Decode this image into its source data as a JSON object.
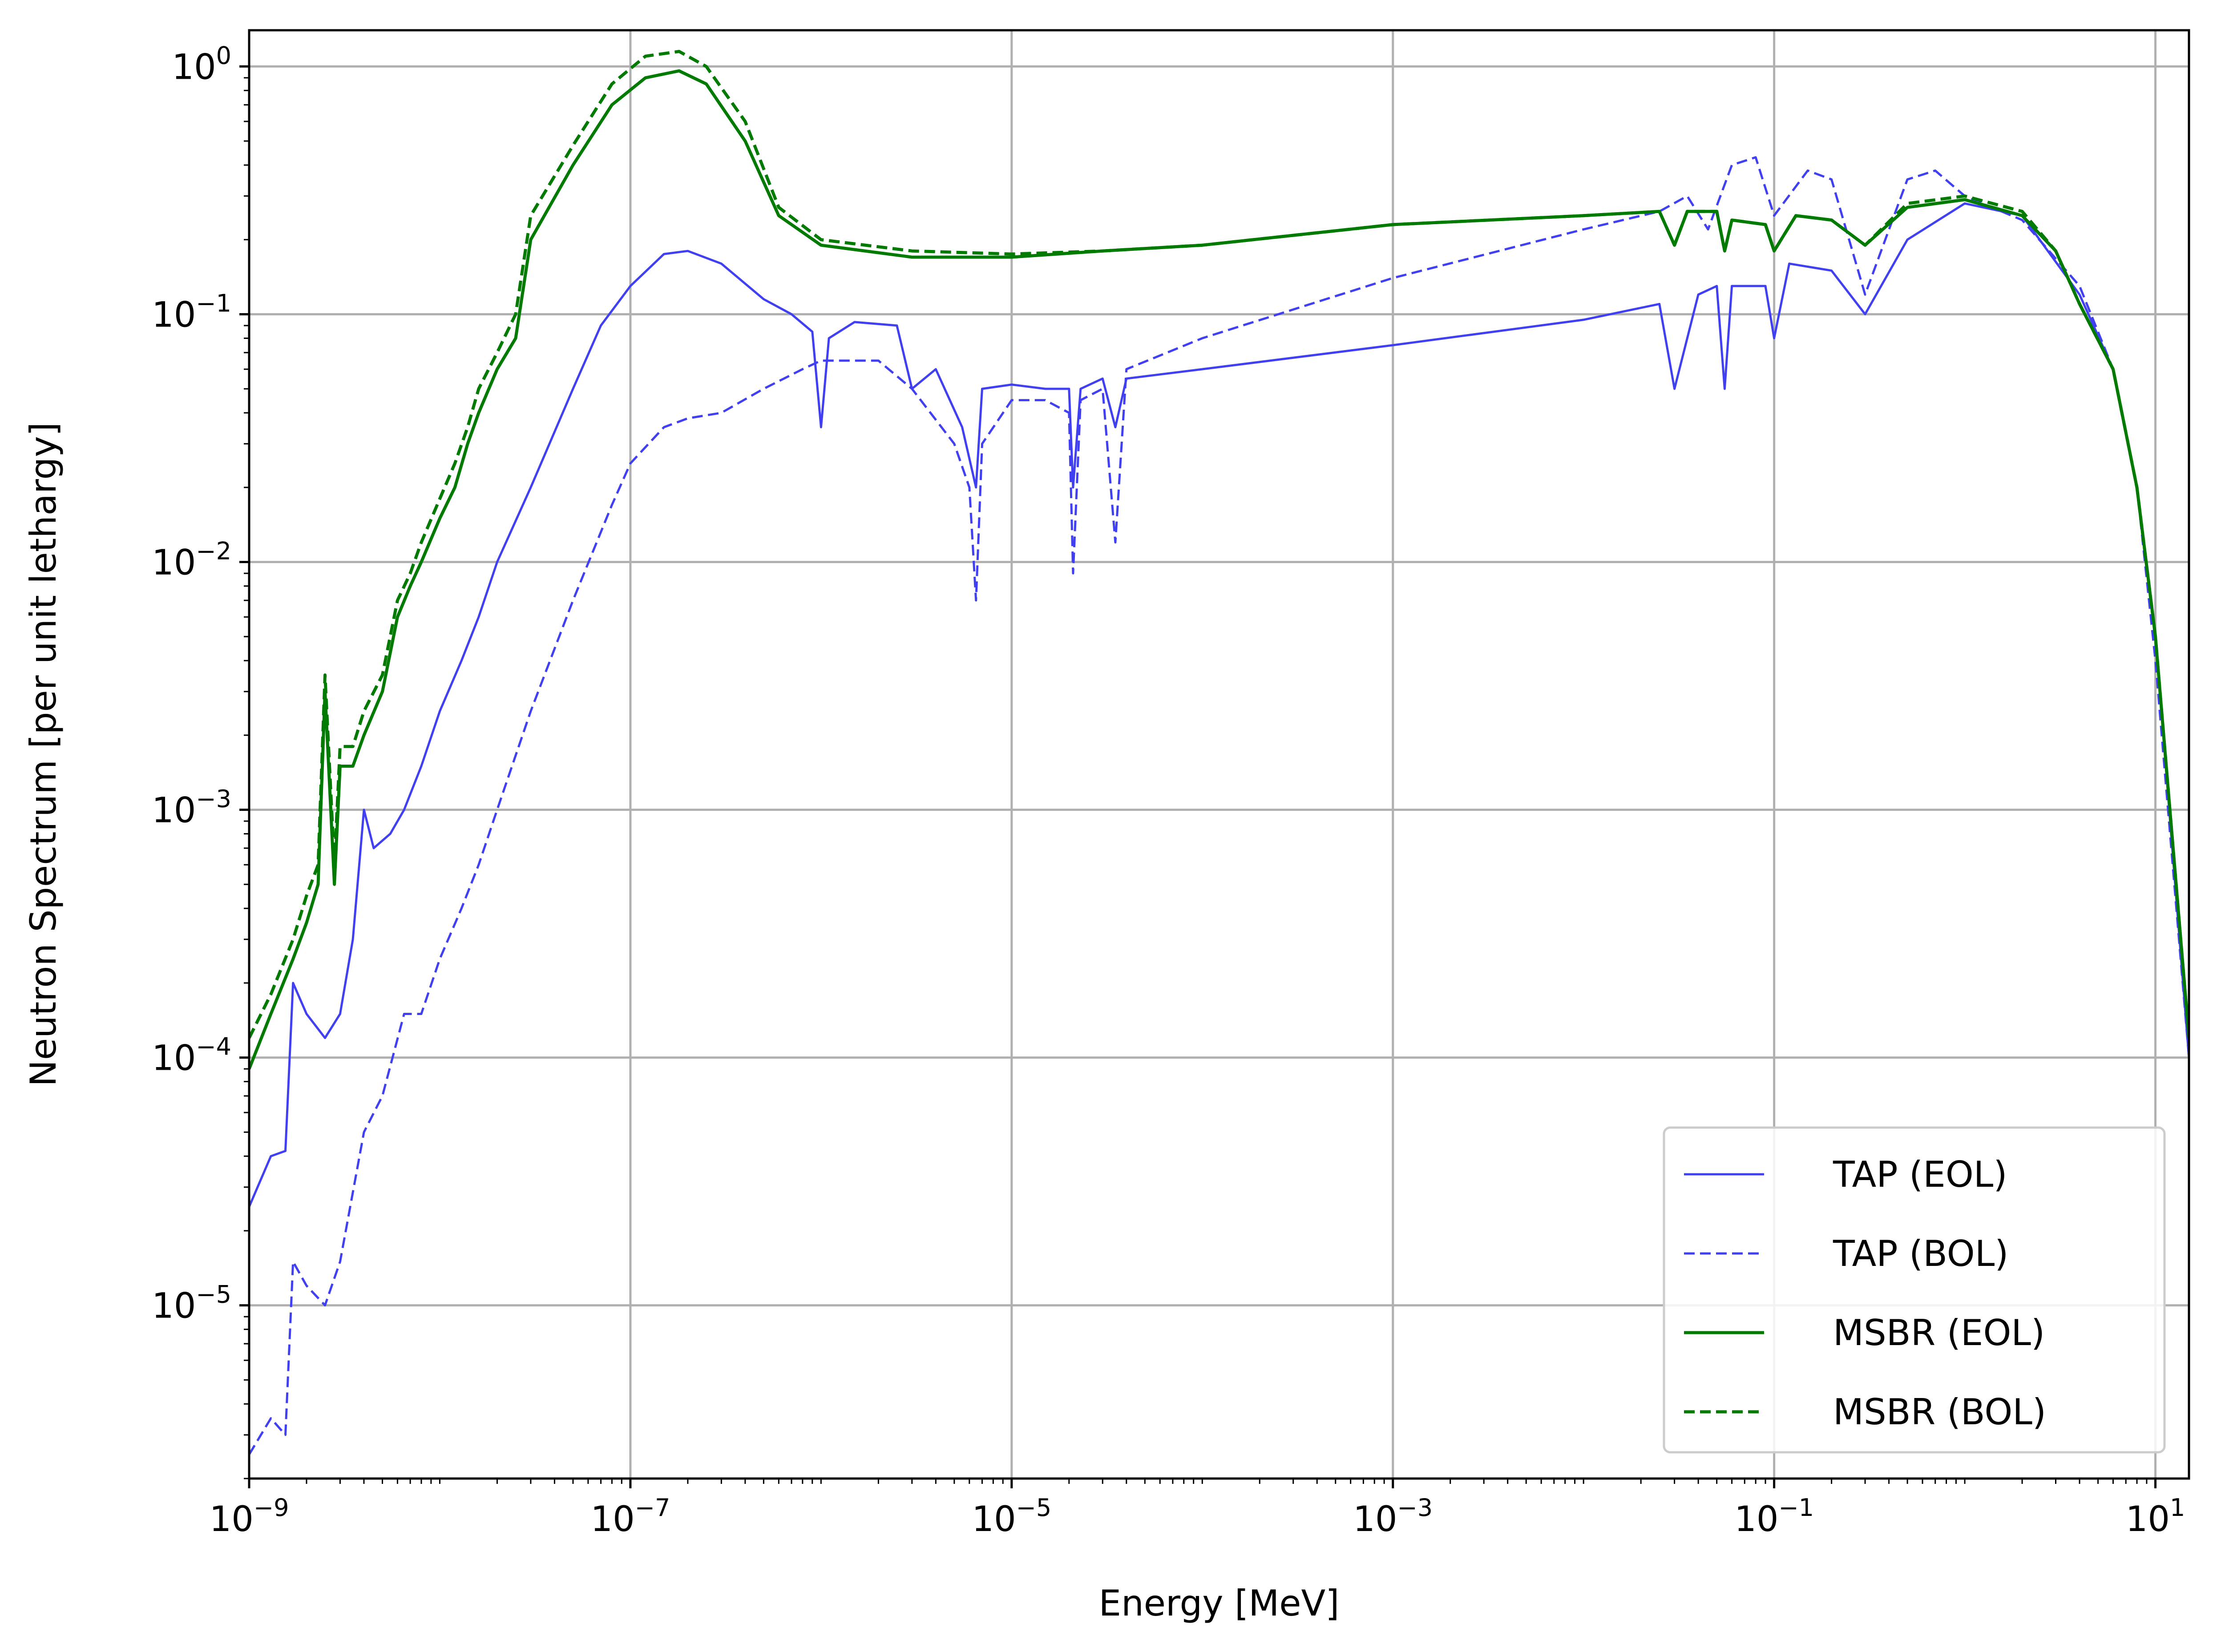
{
  "chart_data": {
    "type": "line",
    "xlabel": "Energy [MeV]",
    "ylabel": "Neutron Spectrum [per unit lethargy]",
    "xscale": "log",
    "yscale": "log",
    "xlim": [
      1e-09,
      15
    ],
    "ylim": [
      2e-06,
      1.4
    ],
    "grid": true,
    "legend_position": "bottom-right",
    "x_ticks": [
      {
        "value": 1e-09,
        "base": "10",
        "exp": "−9"
      },
      {
        "value": 1e-07,
        "base": "10",
        "exp": "−7"
      },
      {
        "value": 1e-05,
        "base": "10",
        "exp": "−5"
      },
      {
        "value": 0.001,
        "base": "10",
        "exp": "−3"
      },
      {
        "value": 0.1,
        "base": "10",
        "exp": "−1"
      },
      {
        "value": 10,
        "base": "10",
        "exp": "1"
      }
    ],
    "y_ticks": [
      {
        "value": 1,
        "base": "10",
        "exp": "0"
      },
      {
        "value": 0.1,
        "base": "10",
        "exp": "−1"
      },
      {
        "value": 0.01,
        "base": "10",
        "exp": "−2"
      },
      {
        "value": 0.001,
        "base": "10",
        "exp": "−3"
      },
      {
        "value": 0.0001,
        "base": "10",
        "exp": "−4"
      },
      {
        "value": 1e-05,
        "base": "10",
        "exp": "−5"
      }
    ],
    "series": [
      {
        "name": "TAP (EOL)",
        "color": "#4040f0",
        "dash": "solid",
        "points": [
          [
            1e-09,
            2.5e-05
          ],
          [
            1.3e-09,
            4e-05
          ],
          [
            1.55e-09,
            4.2e-05
          ],
          [
            1.7e-09,
            0.0002
          ],
          [
            2e-09,
            0.00015
          ],
          [
            2.5e-09,
            0.00012
          ],
          [
            3e-09,
            0.00015
          ],
          [
            3.5e-09,
            0.0003
          ],
          [
            4e-09,
            0.001
          ],
          [
            4.5e-09,
            0.0007
          ],
          [
            5.5e-09,
            0.0008
          ],
          [
            6.5e-09,
            0.001
          ],
          [
            8e-09,
            0.0015
          ],
          [
            1e-08,
            0.0025
          ],
          [
            1.3e-08,
            0.004
          ],
          [
            1.6e-08,
            0.006
          ],
          [
            2e-08,
            0.01
          ],
          [
            3e-08,
            0.02
          ],
          [
            5e-08,
            0.05
          ],
          [
            7e-08,
            0.09
          ],
          [
            1e-07,
            0.13
          ],
          [
            1.5e-07,
            0.175
          ],
          [
            2e-07,
            0.18
          ],
          [
            3e-07,
            0.16
          ],
          [
            5e-07,
            0.115
          ],
          [
            7e-07,
            0.1
          ],
          [
            9e-07,
            0.085
          ],
          [
            1e-06,
            0.035
          ],
          [
            1.1e-06,
            0.08
          ],
          [
            1.5e-06,
            0.093
          ],
          [
            2.5e-06,
            0.09
          ],
          [
            3e-06,
            0.05
          ],
          [
            4e-06,
            0.06
          ],
          [
            5.5e-06,
            0.035
          ],
          [
            6.5e-06,
            0.02
          ],
          [
            7e-06,
            0.05
          ],
          [
            1e-05,
            0.052
          ],
          [
            1.5e-05,
            0.05
          ],
          [
            2e-05,
            0.05
          ],
          [
            2.1e-05,
            0.02
          ],
          [
            2.3e-05,
            0.05
          ],
          [
            3e-05,
            0.055
          ],
          [
            3.5e-05,
            0.035
          ],
          [
            4e-05,
            0.055
          ],
          [
            0.0001,
            0.06
          ],
          [
            0.001,
            0.075
          ],
          [
            0.01,
            0.095
          ],
          [
            0.025,
            0.11
          ],
          [
            0.03,
            0.05
          ],
          [
            0.04,
            0.12
          ],
          [
            0.05,
            0.13
          ],
          [
            0.055,
            0.05
          ],
          [
            0.06,
            0.13
          ],
          [
            0.09,
            0.13
          ],
          [
            0.1,
            0.08
          ],
          [
            0.12,
            0.16
          ],
          [
            0.2,
            0.15
          ],
          [
            0.3,
            0.1
          ],
          [
            0.5,
            0.2
          ],
          [
            1,
            0.28
          ],
          [
            2,
            0.25
          ],
          [
            4,
            0.12
          ],
          [
            6,
            0.06
          ],
          [
            8,
            0.02
          ],
          [
            10,
            0.005
          ],
          [
            15,
            0.0001
          ]
        ]
      },
      {
        "name": "TAP (BOL)",
        "color": "#4040f0",
        "dash": "dashed",
        "points": [
          [
            1e-09,
            2.5e-06
          ],
          [
            1.3e-09,
            3.5e-06
          ],
          [
            1.55e-09,
            3e-06
          ],
          [
            1.7e-09,
            1.5e-05
          ],
          [
            2e-09,
            1.2e-05
          ],
          [
            2.5e-09,
            1e-05
          ],
          [
            3e-09,
            1.5e-05
          ],
          [
            4e-09,
            5e-05
          ],
          [
            5e-09,
            7e-05
          ],
          [
            6.5e-09,
            0.00015
          ],
          [
            8e-09,
            0.00015
          ],
          [
            1e-08,
            0.00025
          ],
          [
            1.3e-08,
            0.0004
          ],
          [
            1.6e-08,
            0.0006
          ],
          [
            2e-08,
            0.001
          ],
          [
            3e-08,
            0.0025
          ],
          [
            5e-08,
            0.007
          ],
          [
            8e-08,
            0.017
          ],
          [
            1e-07,
            0.025
          ],
          [
            1.5e-07,
            0.035
          ],
          [
            2e-07,
            0.038
          ],
          [
            3e-07,
            0.04
          ],
          [
            5e-07,
            0.05
          ],
          [
            8e-07,
            0.06
          ],
          [
            1e-06,
            0.065
          ],
          [
            2e-06,
            0.065
          ],
          [
            3e-06,
            0.05
          ],
          [
            5e-06,
            0.03
          ],
          [
            6e-06,
            0.02
          ],
          [
            6.5e-06,
            0.007
          ],
          [
            7e-06,
            0.03
          ],
          [
            1e-05,
            0.045
          ],
          [
            1.5e-05,
            0.045
          ],
          [
            2e-05,
            0.04
          ],
          [
            2.1e-05,
            0.009
          ],
          [
            2.3e-05,
            0.045
          ],
          [
            3e-05,
            0.05
          ],
          [
            3.5e-05,
            0.012
          ],
          [
            4e-05,
            0.06
          ],
          [
            0.0001,
            0.08
          ],
          [
            0.001,
            0.14
          ],
          [
            0.01,
            0.22
          ],
          [
            0.025,
            0.26
          ],
          [
            0.035,
            0.3
          ],
          [
            0.045,
            0.22
          ],
          [
            0.06,
            0.4
          ],
          [
            0.08,
            0.43
          ],
          [
            0.1,
            0.25
          ],
          [
            0.15,
            0.38
          ],
          [
            0.2,
            0.35
          ],
          [
            0.3,
            0.12
          ],
          [
            0.5,
            0.35
          ],
          [
            0.7,
            0.38
          ],
          [
            1,
            0.3
          ],
          [
            2,
            0.24
          ],
          [
            4,
            0.13
          ],
          [
            6,
            0.06
          ],
          [
            8,
            0.02
          ],
          [
            10,
            0.004
          ],
          [
            15,
            0.0001
          ]
        ]
      },
      {
        "name": "MSBR (EOL)",
        "color": "#007a00",
        "dash": "solid",
        "points": [
          [
            1e-09,
            9e-05
          ],
          [
            1.3e-09,
            0.00015
          ],
          [
            1.7e-09,
            0.00025
          ],
          [
            2e-09,
            0.00035
          ],
          [
            2.3e-09,
            0.0005
          ],
          [
            2.5e-09,
            0.003
          ],
          [
            2.8e-09,
            0.0005
          ],
          [
            3e-09,
            0.0015
          ],
          [
            3.5e-09,
            0.0015
          ],
          [
            4e-09,
            0.002
          ],
          [
            5e-09,
            0.003
          ],
          [
            6e-09,
            0.006
          ],
          [
            7e-09,
            0.008
          ],
          [
            8e-09,
            0.01
          ],
          [
            1e-08,
            0.015
          ],
          [
            1.2e-08,
            0.02
          ],
          [
            1.4e-08,
            0.03
          ],
          [
            1.6e-08,
            0.04
          ],
          [
            2e-08,
            0.06
          ],
          [
            2.5e-08,
            0.08
          ],
          [
            3e-08,
            0.2
          ],
          [
            5e-08,
            0.4
          ],
          [
            8e-08,
            0.7
          ],
          [
            1.2e-07,
            0.9
          ],
          [
            1.8e-07,
            0.96
          ],
          [
            2.5e-07,
            0.85
          ],
          [
            4e-07,
            0.5
          ],
          [
            6e-07,
            0.25
          ],
          [
            1e-06,
            0.19
          ],
          [
            3e-06,
            0.17
          ],
          [
            1e-05,
            0.17
          ],
          [
            3e-05,
            0.18
          ],
          [
            0.0001,
            0.19
          ],
          [
            0.001,
            0.23
          ],
          [
            0.01,
            0.25
          ],
          [
            0.025,
            0.26
          ],
          [
            0.03,
            0.19
          ],
          [
            0.035,
            0.26
          ],
          [
            0.05,
            0.26
          ],
          [
            0.055,
            0.18
          ],
          [
            0.06,
            0.24
          ],
          [
            0.09,
            0.23
          ],
          [
            0.1,
            0.18
          ],
          [
            0.13,
            0.25
          ],
          [
            0.2,
            0.24
          ],
          [
            0.3,
            0.19
          ],
          [
            0.5,
            0.27
          ],
          [
            1,
            0.29
          ],
          [
            2,
            0.25
          ],
          [
            3,
            0.18
          ],
          [
            4,
            0.11
          ],
          [
            6,
            0.06
          ],
          [
            8,
            0.02
          ],
          [
            10,
            0.005
          ],
          [
            15,
            0.00012
          ]
        ]
      },
      {
        "name": "MSBR (BOL)",
        "color": "#007a00",
        "dash": "dashed",
        "points": [
          [
            1e-09,
            0.00012
          ],
          [
            1.3e-09,
            0.00018
          ],
          [
            1.7e-09,
            0.0003
          ],
          [
            2e-09,
            0.00045
          ],
          [
            2.3e-09,
            0.0006
          ],
          [
            2.5e-09,
            0.0035
          ],
          [
            2.8e-09,
            0.0006
          ],
          [
            3e-09,
            0.0018
          ],
          [
            3.5e-09,
            0.0018
          ],
          [
            4e-09,
            0.0025
          ],
          [
            5e-09,
            0.0035
          ],
          [
            6e-09,
            0.007
          ],
          [
            7e-09,
            0.009
          ],
          [
            8e-09,
            0.012
          ],
          [
            1e-08,
            0.018
          ],
          [
            1.2e-08,
            0.025
          ],
          [
            1.4e-08,
            0.035
          ],
          [
            1.6e-08,
            0.05
          ],
          [
            2e-08,
            0.07
          ],
          [
            2.5e-08,
            0.1
          ],
          [
            3e-08,
            0.25
          ],
          [
            5e-08,
            0.48
          ],
          [
            8e-08,
            0.85
          ],
          [
            1.2e-07,
            1.1
          ],
          [
            1.8e-07,
            1.15
          ],
          [
            2.5e-07,
            1.0
          ],
          [
            4e-07,
            0.6
          ],
          [
            6e-07,
            0.27
          ],
          [
            1e-06,
            0.2
          ],
          [
            3e-06,
            0.18
          ],
          [
            1e-05,
            0.175
          ],
          [
            3e-05,
            0.18
          ],
          [
            0.0001,
            0.19
          ],
          [
            0.001,
            0.23
          ],
          [
            0.01,
            0.25
          ],
          [
            0.025,
            0.26
          ],
          [
            0.03,
            0.19
          ],
          [
            0.035,
            0.26
          ],
          [
            0.05,
            0.26
          ],
          [
            0.055,
            0.18
          ],
          [
            0.06,
            0.24
          ],
          [
            0.09,
            0.23
          ],
          [
            0.1,
            0.18
          ],
          [
            0.13,
            0.25
          ],
          [
            0.2,
            0.24
          ],
          [
            0.3,
            0.19
          ],
          [
            0.5,
            0.28
          ],
          [
            1,
            0.3
          ],
          [
            2,
            0.26
          ],
          [
            3,
            0.18
          ],
          [
            4,
            0.11
          ],
          [
            6,
            0.06
          ],
          [
            8,
            0.02
          ],
          [
            10,
            0.005
          ],
          [
            15,
            0.00012
          ]
        ]
      }
    ]
  }
}
